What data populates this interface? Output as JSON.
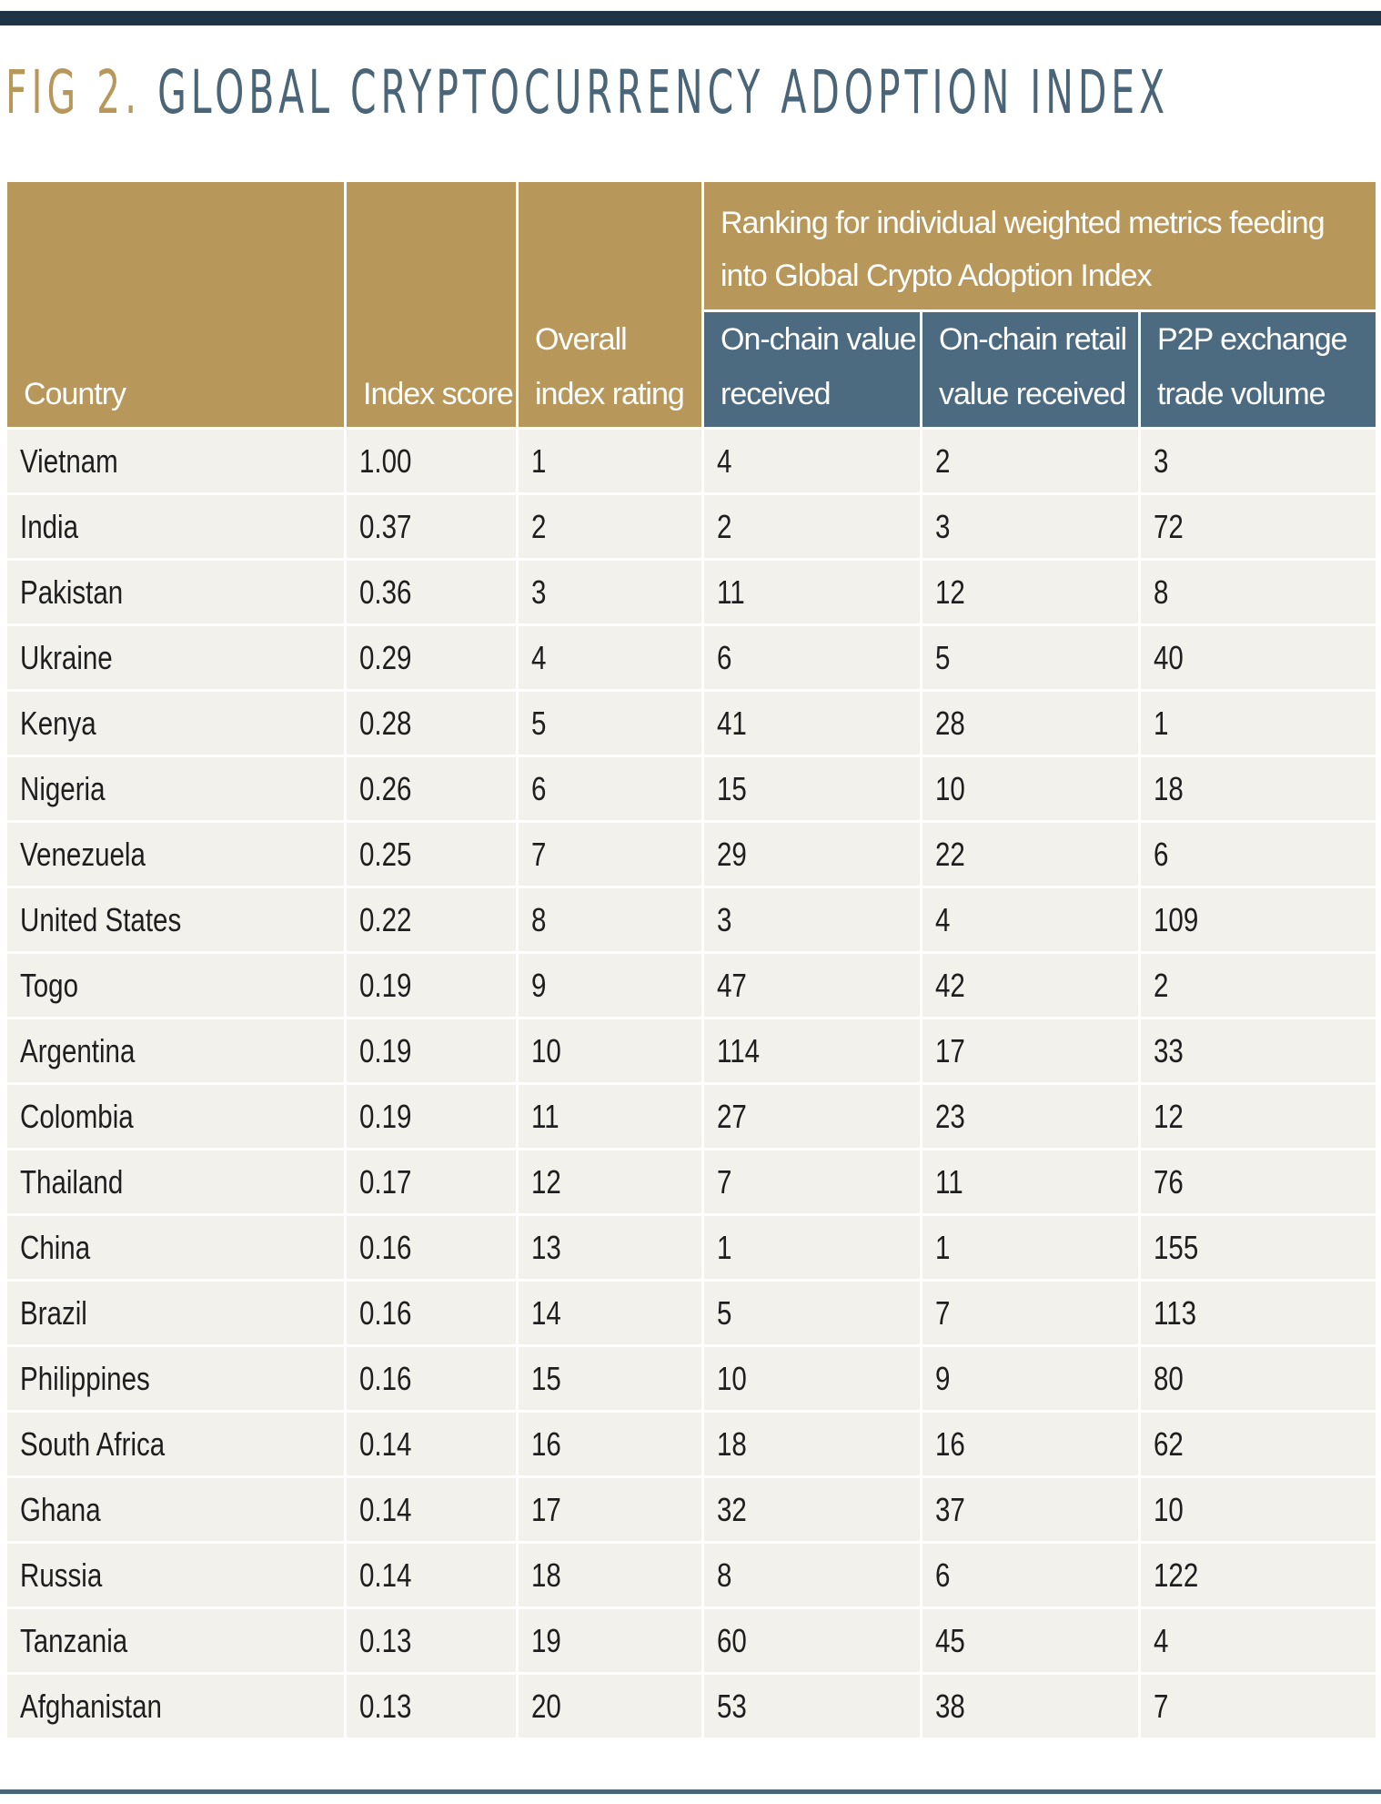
{
  "figure": {
    "label": "FIG 2.",
    "title": "GLOBAL CRYPTOCURRENCY ADOPTION INDEX"
  },
  "colors": {
    "gold": "#b8975a",
    "slate": "#4d6b80",
    "navy_rule": "#1f3444",
    "row_bg": "#f3f1ec"
  },
  "chart_data": {
    "type": "table",
    "title": "GLOBAL CRYPTOCURRENCY ADOPTION INDEX",
    "group_header": "Ranking for individual weighted metrics feeding into Global Crypto Adoption Index",
    "columns": [
      "Country",
      "Index score",
      "Overall index rating",
      "On-chain value received",
      "On-chain retail value received",
      "P2P exchange trade volume"
    ],
    "rows": [
      [
        "Vietnam",
        "1.00",
        "1",
        "4",
        "2",
        "3"
      ],
      [
        "India",
        "0.37",
        "2",
        "2",
        "3",
        "72"
      ],
      [
        "Pakistan",
        "0.36",
        "3",
        "11",
        "12",
        "8"
      ],
      [
        "Ukraine",
        "0.29",
        "4",
        "6",
        "5",
        "40"
      ],
      [
        "Kenya",
        "0.28",
        "5",
        "41",
        "28",
        "1"
      ],
      [
        "Nigeria",
        "0.26",
        "6",
        "15",
        "10",
        "18"
      ],
      [
        "Venezuela",
        "0.25",
        "7",
        "29",
        "22",
        "6"
      ],
      [
        "United States",
        "0.22",
        "8",
        "3",
        "4",
        "109"
      ],
      [
        "Togo",
        "0.19",
        "9",
        "47",
        "42",
        "2"
      ],
      [
        "Argentina",
        "0.19",
        "10",
        "114",
        "17",
        "33"
      ],
      [
        "Colombia",
        "0.19",
        "11",
        "27",
        "23",
        "12"
      ],
      [
        "Thailand",
        "0.17",
        "12",
        "7",
        "11",
        "76"
      ],
      [
        "China",
        "0.16",
        "13",
        "1",
        "1",
        "155"
      ],
      [
        "Brazil",
        "0.16",
        "14",
        "5",
        "7",
        "113"
      ],
      [
        "Philippines",
        "0.16",
        "15",
        "10",
        "9",
        "80"
      ],
      [
        "South Africa",
        "0.14",
        "16",
        "18",
        "16",
        "62"
      ],
      [
        "Ghana",
        "0.14",
        "17",
        "32",
        "37",
        "10"
      ],
      [
        "Russia",
        "0.14",
        "18",
        "8",
        "6",
        "122"
      ],
      [
        "Tanzania",
        "0.13",
        "19",
        "60",
        "45",
        "4"
      ],
      [
        "Afghanistan",
        "0.13",
        "20",
        "53",
        "38",
        "7"
      ]
    ]
  }
}
